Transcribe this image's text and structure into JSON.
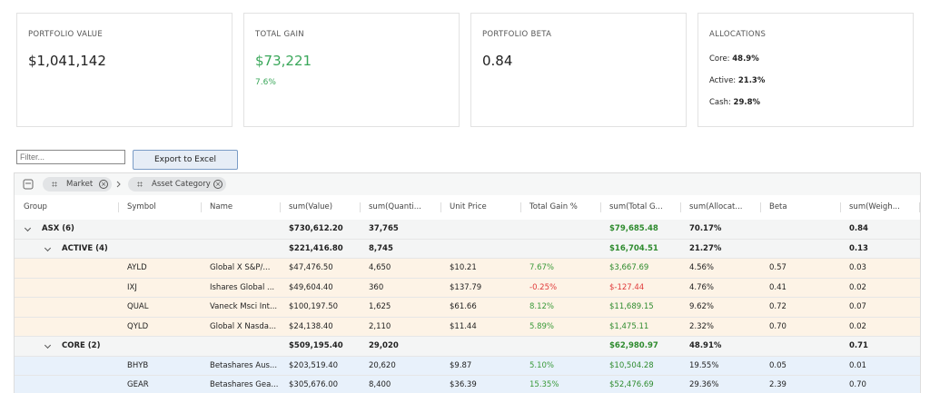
{
  "cards": [
    {
      "label": "PORTFOLIO VALUE",
      "value": "$1,041,142"
    },
    {
      "label": "TOTAL GAIN",
      "value": "$73,221",
      "sub": "7.6%"
    },
    {
      "label": "PORTFOLIO BETA",
      "value": "0.84"
    },
    {
      "label": "ALLOCATIONS",
      "items": [
        {
          "label": "Core:",
          "value": "48.9%"
        },
        {
          "label": "Active:",
          "value": "21.3%"
        },
        {
          "label": "Cash:",
          "value": "29.8%"
        }
      ]
    }
  ],
  "toolbar": {
    "filter_placeholder": "Filter...",
    "export_button": "Export to Excel"
  },
  "table": {
    "group_chips": [
      "Market",
      "Asset Category"
    ],
    "headers": [
      "Group",
      "Symbol",
      "Name",
      "sum(Value)",
      "sum(Quanti...",
      "Unit Price",
      "Total Gain %",
      "sum(Total G...",
      "sum(Allocat...",
      "Beta",
      "sum(Weigh..."
    ],
    "groups": [
      {
        "group": "ASX (6)",
        "value": "$730,612.20",
        "quantity": "37,765",
        "total_gain": "$79,685.48",
        "allocation": "70.17%",
        "weight": "0.84",
        "children": [
          {
            "group": "ACTIVE (4)",
            "value": "$221,416.80",
            "quantity": "8,745",
            "total_gain": "$16,704.51",
            "allocation": "21.27%",
            "weight": "0.13",
            "rows": [
              {
                "symbol": "AYLD",
                "name": "Global X S&P/...",
                "value": "$47,476.50",
                "quantity": "4,650",
                "price": "$10.21",
                "gain_pct": "7.67%",
                "total_gain": "$3,667.69",
                "allocation": "4.56%",
                "beta": "0.57",
                "weight": "0.03"
              },
              {
                "symbol": "IXJ",
                "name": "Ishares Global ...",
                "value": "$49,604.40",
                "quantity": "360",
                "price": "$137.79",
                "gain_pct": "-0.25%",
                "total_gain": "$-127.44",
                "allocation": "4.76%",
                "beta": "0.41",
                "weight": "0.02"
              },
              {
                "symbol": "QUAL",
                "name": "Vaneck Msci Int...",
                "value": "$100,197.50",
                "quantity": "1,625",
                "price": "$61.66",
                "gain_pct": "8.12%",
                "total_gain": "$11,689.15",
                "allocation": "9.62%",
                "beta": "0.72",
                "weight": "0.07"
              },
              {
                "symbol": "QYLD",
                "name": "Global X Nasda...",
                "value": "$24,138.40",
                "quantity": "2,110",
                "price": "$11.44",
                "gain_pct": "5.89%",
                "total_gain": "$1,475.11",
                "allocation": "2.32%",
                "beta": "0.70",
                "weight": "0.02"
              }
            ]
          },
          {
            "group": "CORE (2)",
            "value": "$509,195.40",
            "quantity": "29,020",
            "total_gain": "$62,980.97",
            "allocation": "48.91%",
            "weight": "0.71",
            "rows": [
              {
                "symbol": "BHYB",
                "name": "Betashares Aus...",
                "value": "$203,519.40",
                "quantity": "20,620",
                "price": "$9.87",
                "gain_pct": "5.10%",
                "total_gain": "$10,504.28",
                "allocation": "19.55%",
                "beta": "0.05",
                "weight": "0.01"
              },
              {
                "symbol": "GEAR",
                "name": "Betashares Gea...",
                "value": "$305,676.00",
                "quantity": "8,400",
                "price": "$36.39",
                "gain_pct": "15.35%",
                "total_gain": "$52,476.69",
                "allocation": "29.36%",
                "beta": "2.39",
                "weight": "0.70"
              }
            ]
          }
        ]
      }
    ]
  }
}
